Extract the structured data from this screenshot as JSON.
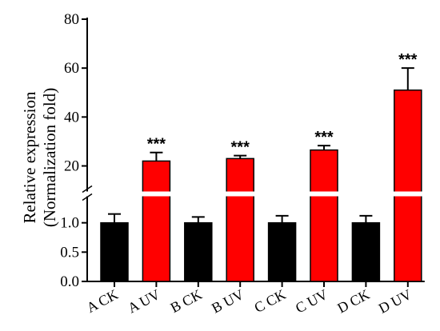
{
  "chart_data": {
    "type": "bar",
    "ylabel_lines": [
      "Relative expression",
      "(Normalization fold)"
    ],
    "categories": [
      "A CK",
      "A UV",
      "B CK",
      "B UV",
      "C CK",
      "C UV",
      "D CK",
      "D UV"
    ],
    "values": [
      1.0,
      22.0,
      1.0,
      23.0,
      1.0,
      26.5,
      1.0,
      51.0
    ],
    "errors": [
      0.15,
      3.5,
      0.1,
      1.2,
      0.12,
      1.8,
      0.12,
      9.0
    ],
    "significance": [
      "",
      "***",
      "",
      "***",
      "",
      "***",
      "",
      "***"
    ],
    "bar_colors": [
      "#000000",
      "#ff0000",
      "#000000",
      "#ff0000",
      "#000000",
      "#ff0000",
      "#000000",
      "#ff0000"
    ],
    "axis_break": true,
    "lower_axis": {
      "ylim": [
        0,
        1.2
      ],
      "ticks": [
        "0.0",
        "0.5",
        "1.0"
      ],
      "tick_values": [
        0,
        0.5,
        1.0
      ]
    },
    "upper_axis": {
      "ylim": [
        12,
        80
      ],
      "ticks": [
        "20",
        "40",
        "60",
        "80"
      ],
      "tick_values": [
        20,
        40,
        60,
        80
      ]
    },
    "grid": false,
    "legend": "none"
  }
}
